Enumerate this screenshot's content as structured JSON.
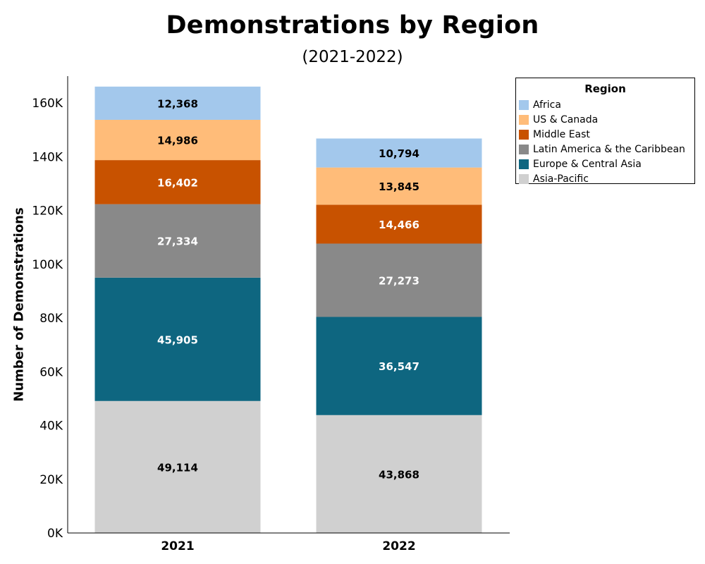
{
  "chart_data": {
    "type": "bar",
    "stacked": true,
    "title": "Demonstrations by Region",
    "subtitle": "(2021-2022)",
    "ylabel": "Number of Demonstrations",
    "xlabel": "",
    "categories": [
      "2021",
      "2022"
    ],
    "ylim": [
      0,
      170000
    ],
    "yticks": [
      0,
      20000,
      40000,
      60000,
      80000,
      100000,
      120000,
      140000,
      160000
    ],
    "ytick_labels": [
      "0K",
      "20K",
      "40K",
      "60K",
      "80K",
      "100K",
      "120K",
      "140K",
      "160K"
    ],
    "grid": false,
    "legend_title": "Region",
    "legend_position": "top-right",
    "series": [
      {
        "name": "Asia-Pacific",
        "values": [
          49114,
          43868
        ],
        "labels": [
          "49,114",
          "43,868"
        ],
        "color": "#d0d0d0",
        "label_color": "#000000"
      },
      {
        "name": "Europe & Central Asia",
        "values": [
          45905,
          36547
        ],
        "labels": [
          "45,905",
          "36,547"
        ],
        "color": "#0e6680",
        "label_color": "#ffffff"
      },
      {
        "name": "Latin America & the Caribbean",
        "values": [
          27334,
          27273
        ],
        "labels": [
          "27,334",
          "27,273"
        ],
        "color": "#898989",
        "label_color": "#ffffff"
      },
      {
        "name": "Middle East",
        "values": [
          16402,
          14466
        ],
        "labels": [
          "16,402",
          "14,466"
        ],
        "color": "#c85200",
        "label_color": "#ffffff"
      },
      {
        "name": "US & Canada",
        "values": [
          14986,
          13845
        ],
        "labels": [
          "14,986",
          "13,845"
        ],
        "color": "#ffbc79",
        "label_color": "#000000"
      },
      {
        "name": "Africa",
        "values": [
          12368,
          10794
        ],
        "labels": [
          "12,368",
          "10,794"
        ],
        "color": "#a3c8ec",
        "label_color": "#000000"
      }
    ],
    "legend_order": [
      "Africa",
      "US & Canada",
      "Middle East",
      "Latin America & the Caribbean",
      "Europe & Central Asia",
      "Asia-Pacific"
    ]
  }
}
